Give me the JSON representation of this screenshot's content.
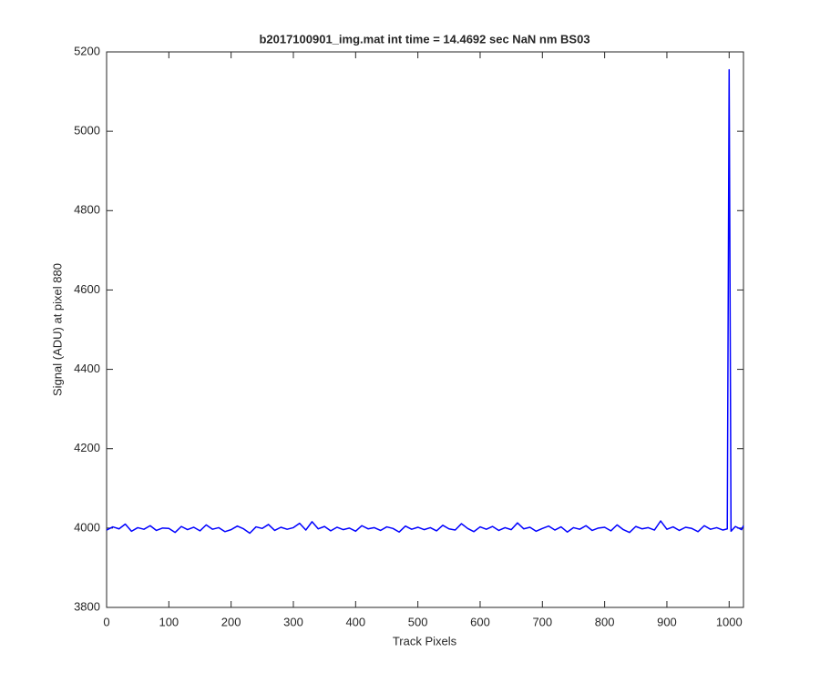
{
  "chart_data": {
    "type": "line",
    "title": "b2017100901_img.mat int time = 14.4692 sec  NaN nm BS03",
    "x_label": "Track Pixels",
    "y_label": "Signal (ADU) at pixel 880",
    "x": [
      0,
      10,
      20,
      30,
      40,
      50,
      60,
      70,
      80,
      90,
      100,
      110,
      120,
      130,
      140,
      150,
      160,
      170,
      180,
      190,
      200,
      210,
      220,
      230,
      240,
      250,
      260,
      270,
      280,
      290,
      300,
      310,
      320,
      330,
      340,
      350,
      360,
      370,
      380,
      390,
      400,
      410,
      420,
      430,
      440,
      450,
      460,
      470,
      480,
      490,
      500,
      510,
      520,
      530,
      540,
      550,
      560,
      570,
      580,
      590,
      600,
      610,
      620,
      630,
      640,
      650,
      660,
      670,
      680,
      690,
      700,
      710,
      720,
      730,
      740,
      750,
      760,
      770,
      780,
      790,
      800,
      810,
      820,
      830,
      840,
      850,
      860,
      870,
      880,
      890,
      900,
      910,
      920,
      930,
      940,
      950,
      960,
      970,
      980,
      990,
      997,
      1000,
      1003,
      1010,
      1020,
      1023
    ],
    "series": [
      {
        "name": "signal",
        "color": "#0000ff",
        "values": [
          3995,
          4003,
          3998,
          4010,
          3992,
          4001,
          3997,
          4006,
          3994,
          4000,
          3999,
          3989,
          4004,
          3996,
          4002,
          3993,
          4008,
          3997,
          4001,
          3991,
          3996,
          4005,
          3998,
          3987,
          4003,
          3999,
          4009,
          3994,
          4002,
          3997,
          4001,
          4012,
          3995,
          4016,
          3998,
          4004,
          3993,
          4002,
          3996,
          4000,
          3992,
          4006,
          3998,
          4001,
          3994,
          4003,
          3999,
          3990,
          4005,
          3997,
          4002,
          3996,
          4001,
          3993,
          4007,
          3998,
          3995,
          4011,
          3999,
          3991,
          4003,
          3997,
          4004,
          3994,
          4001,
          3996,
          4013,
          3998,
          4002,
          3992,
          3999,
          4005,
          3995,
          4003,
          3990,
          4001,
          3997,
          4006,
          3994,
          4000,
          4002,
          3993,
          4008,
          3996,
          3989,
          4004,
          3998,
          4001,
          3995,
          4018,
          3997,
          4003,
          3994,
          4002,
          3999,
          3991,
          4006,
          3997,
          4001,
          3995,
          3998,
          5155,
          3992,
          4004,
          3996,
          4006
        ]
      }
    ],
    "xlim": [
      0,
      1023
    ],
    "xticks": [
      0,
      100,
      200,
      300,
      400,
      500,
      600,
      700,
      800,
      900,
      1000
    ],
    "ylim": [
      3800,
      5200
    ],
    "yticks": [
      3800,
      4000,
      4200,
      4400,
      4600,
      4800,
      5000,
      5200
    ],
    "grid": false
  }
}
